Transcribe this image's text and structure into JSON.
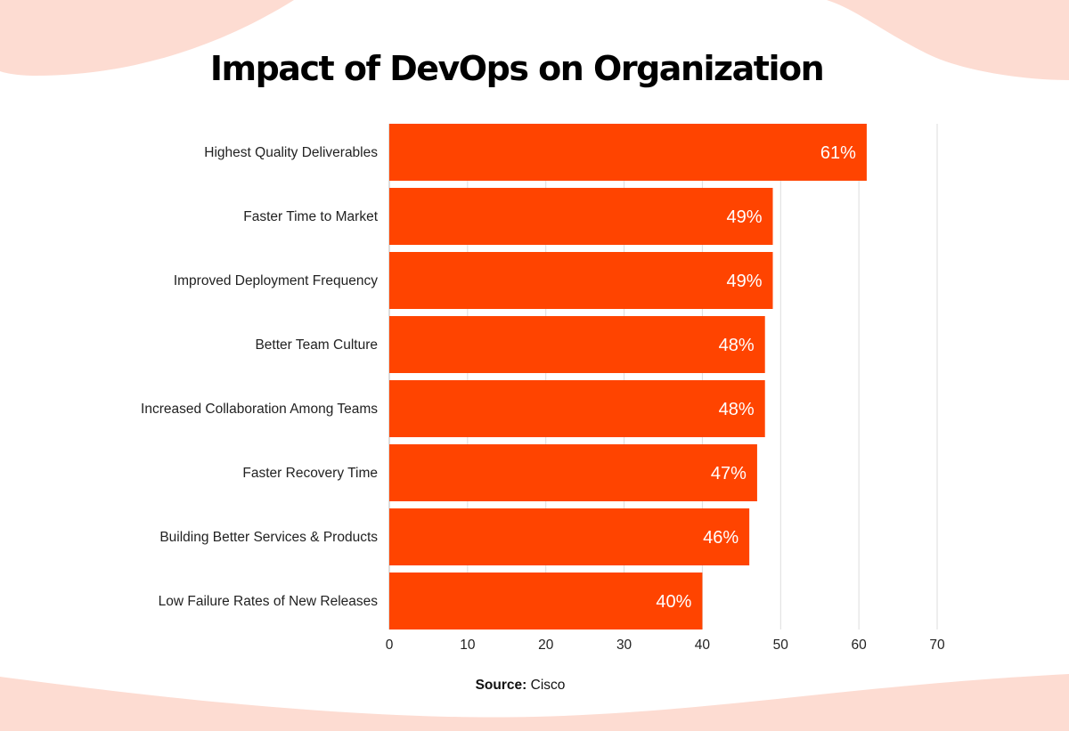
{
  "chart_data": {
    "type": "bar",
    "orientation": "horizontal",
    "title": "Impact of DevOps on Organization",
    "categories": [
      "Highest Quality Deliverables",
      "Faster Time to Market",
      "Improved Deployment Frequency",
      "Better Team Culture",
      "Increased Collaboration Among Teams",
      "Faster Recovery Time",
      "Building Better Services & Products",
      "Low Failure Rates of New Releases"
    ],
    "values": [
      61,
      49,
      49,
      48,
      48,
      47,
      46,
      40
    ],
    "value_labels": [
      "61%",
      "49%",
      "49%",
      "48%",
      "48%",
      "47%",
      "46%",
      "40%"
    ],
    "xlim": [
      0,
      70
    ],
    "xticks": [
      "0",
      "10",
      "20",
      "30",
      "40",
      "50",
      "60",
      "70"
    ],
    "xlabel": "",
    "ylabel": "",
    "grid": "vertical",
    "bar_color": "#ff4400",
    "background_accent": "#fddcd2"
  },
  "source": {
    "label": "Source:",
    "value": "Cisco"
  }
}
